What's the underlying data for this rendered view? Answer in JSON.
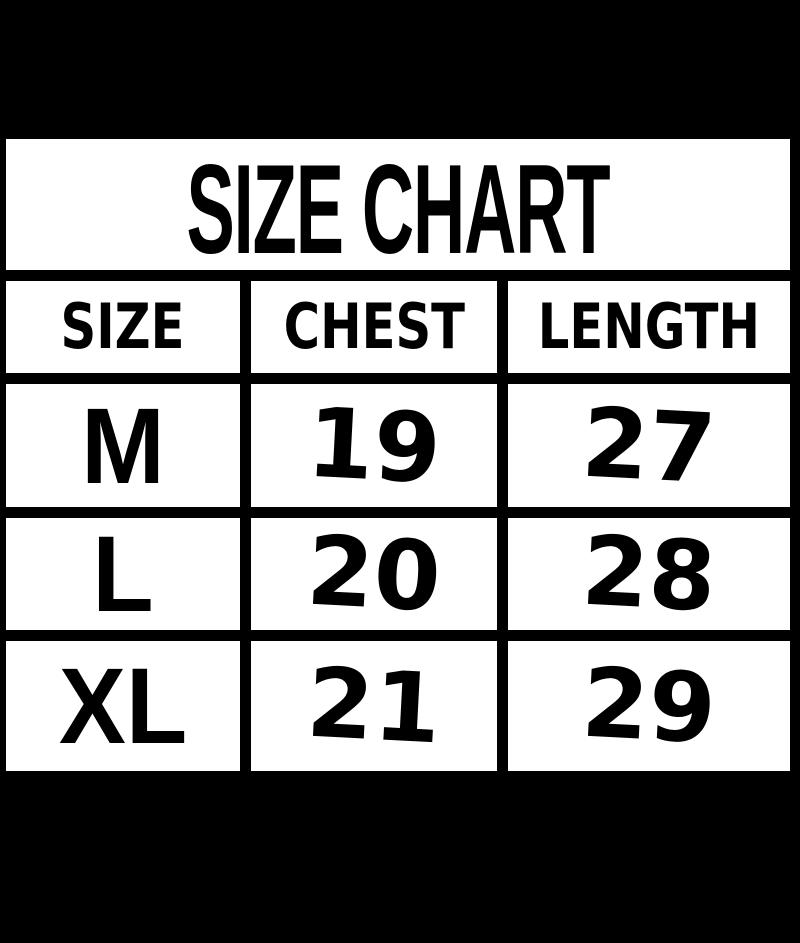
{
  "colors": {
    "background": "#000000",
    "cell_background": "#ffffff",
    "text": "#000000"
  },
  "chart_data": {
    "type": "table",
    "title": "SIZE CHART",
    "columns": [
      "SIZE",
      "CHEST",
      "LENGTH"
    ],
    "rows": [
      [
        "M",
        "19",
        "27"
      ],
      [
        "L",
        "20",
        "28"
      ],
      [
        "XL",
        "21",
        "29"
      ]
    ],
    "layout": "black background, white cells separated by thick black grid gutters, title row spanning all columns"
  }
}
